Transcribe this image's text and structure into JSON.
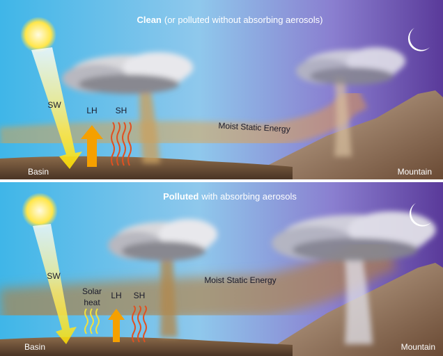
{
  "panels": [
    {
      "title_bold": "Clean",
      "title_rest": "(or polluted without absorbing aerosols)",
      "labels": {
        "sw": "SW",
        "lh": "LH",
        "sh": "SH",
        "mse": "Moist Static Energy",
        "basin": "Basin",
        "mountain": "Mountain"
      }
    },
    {
      "title_bold": "Polluted",
      "title_rest": "with absorbing aerosols",
      "labels": {
        "sw": "SW",
        "solar_1": "Solar",
        "solar_2": "heat",
        "lh": "LH",
        "sh": "SH",
        "mse": "Moist Static Energy",
        "basin": "Basin",
        "mountain": "Mountain"
      }
    }
  ]
}
